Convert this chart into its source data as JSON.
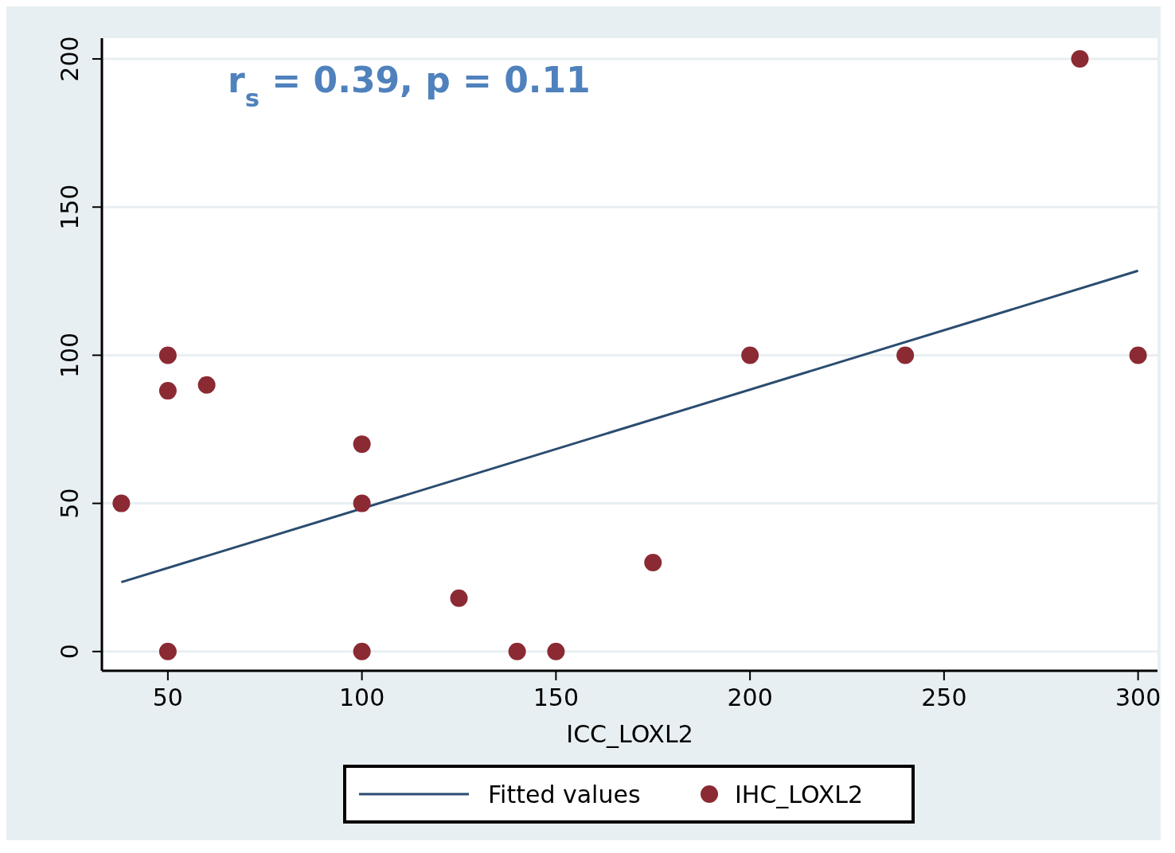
{
  "chart_data": {
    "type": "scatter",
    "xlabel": "ICC_LOXL2",
    "annotations": [
      "r$_{s}$ = 0.39, p = 0.11"
    ],
    "xlim": [
      33,
      305
    ],
    "xticks": [
      50,
      100,
      150,
      200,
      250,
      300
    ],
    "ylim": [
      -6.5,
      207
    ],
    "yticks": [
      0,
      50,
      100,
      150,
      200
    ],
    "grid": "y",
    "legend": "bottom",
    "marker": "circle",
    "series": [
      {
        "name": "Fitted values",
        "type": "line",
        "color": "#2b4c70",
        "x": [
          38,
          300
        ],
        "values": [
          23.4,
          128.5
        ],
        "marker": "none"
      },
      {
        "name": "IHC_LOXL2",
        "color": "#8b2a33",
        "x": [
          38,
          50,
          50,
          60,
          100,
          100,
          50,
          100,
          125,
          140,
          150,
          175,
          200,
          240,
          285,
          300
        ],
        "values": [
          50,
          100,
          88,
          90,
          70,
          50,
          0,
          0,
          18,
          0,
          0,
          30,
          100,
          100,
          200,
          100
        ]
      }
    ]
  }
}
